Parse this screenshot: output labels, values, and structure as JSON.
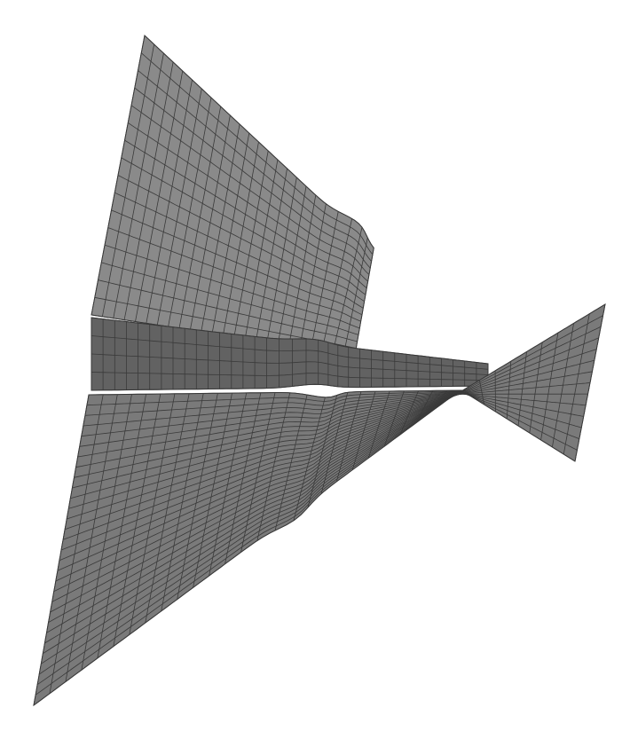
{
  "figure": {
    "kind": "3d-mesh-surface",
    "description_visible": "",
    "colors": {
      "background": "#ffffff",
      "surface_fill": "#7a7a7a",
      "surface_fill_light": "#8a8a8a",
      "surface_fill_dark": "#626262",
      "mesh_lines": "#3a3a3a",
      "outline": "#333333"
    },
    "mesh": {
      "upper_flap_rows": 24,
      "upper_flap_cols": 16,
      "band_rows": 4,
      "band_cols": 34,
      "lower_flap_rows": 30,
      "lower_flap_cols": 26,
      "tail_rows": 14,
      "tail_cols": 10
    }
  }
}
